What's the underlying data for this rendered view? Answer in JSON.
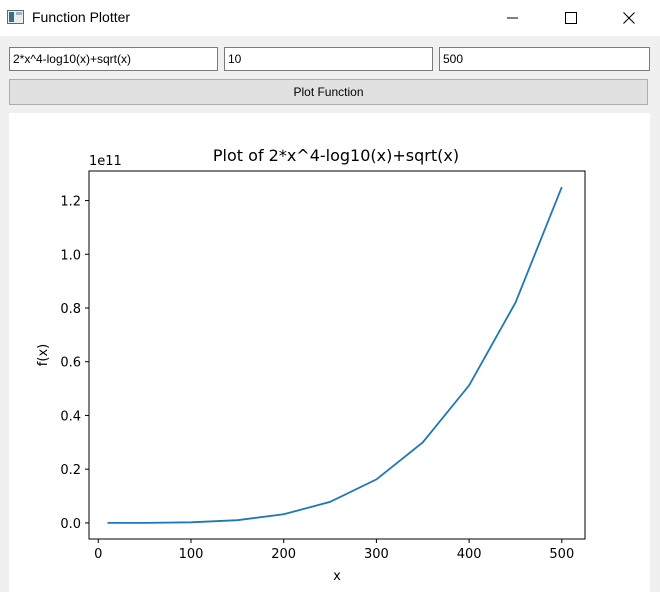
{
  "window": {
    "title": "Function Plotter",
    "icon": "app-window-icon",
    "controls": [
      "minimize-icon",
      "maximize-icon",
      "close-icon"
    ]
  },
  "inputs": {
    "expression": "2*x^4-log10(x)+sqrt(x)",
    "x_min": "10",
    "x_max": "500"
  },
  "buttons": {
    "plot_label": "Plot Function"
  },
  "chart_data": {
    "type": "line",
    "title": "Plot of 2*x^4-log10(x)+sqrt(x)",
    "xlabel": "x",
    "ylabel": "f(x)",
    "y_offset_label": "1e11",
    "xlim": [
      -10,
      525
    ],
    "ylim": [
      -0.06,
      1.31
    ],
    "x_ticks": [
      0,
      100,
      200,
      300,
      400,
      500
    ],
    "x_tick_labels": [
      "0",
      "100",
      "200",
      "300",
      "400",
      "500"
    ],
    "y_ticks": [
      0.0,
      0.2,
      0.4,
      0.6,
      0.8,
      1.0,
      1.2
    ],
    "y_tick_labels": [
      "0.0",
      "0.2",
      "0.4",
      "0.6",
      "0.8",
      "1.0",
      "1.2"
    ],
    "grid": false,
    "series": [
      {
        "color": "#1f77b4",
        "x": [
          10,
          50,
          100,
          150,
          200,
          250,
          300,
          350,
          400,
          450,
          500
        ],
        "y": [
          0.0,
          0.0001,
          0.002,
          0.0101,
          0.032,
          0.0781,
          0.162,
          0.3001,
          0.512,
          0.8201,
          1.25
        ]
      }
    ]
  }
}
